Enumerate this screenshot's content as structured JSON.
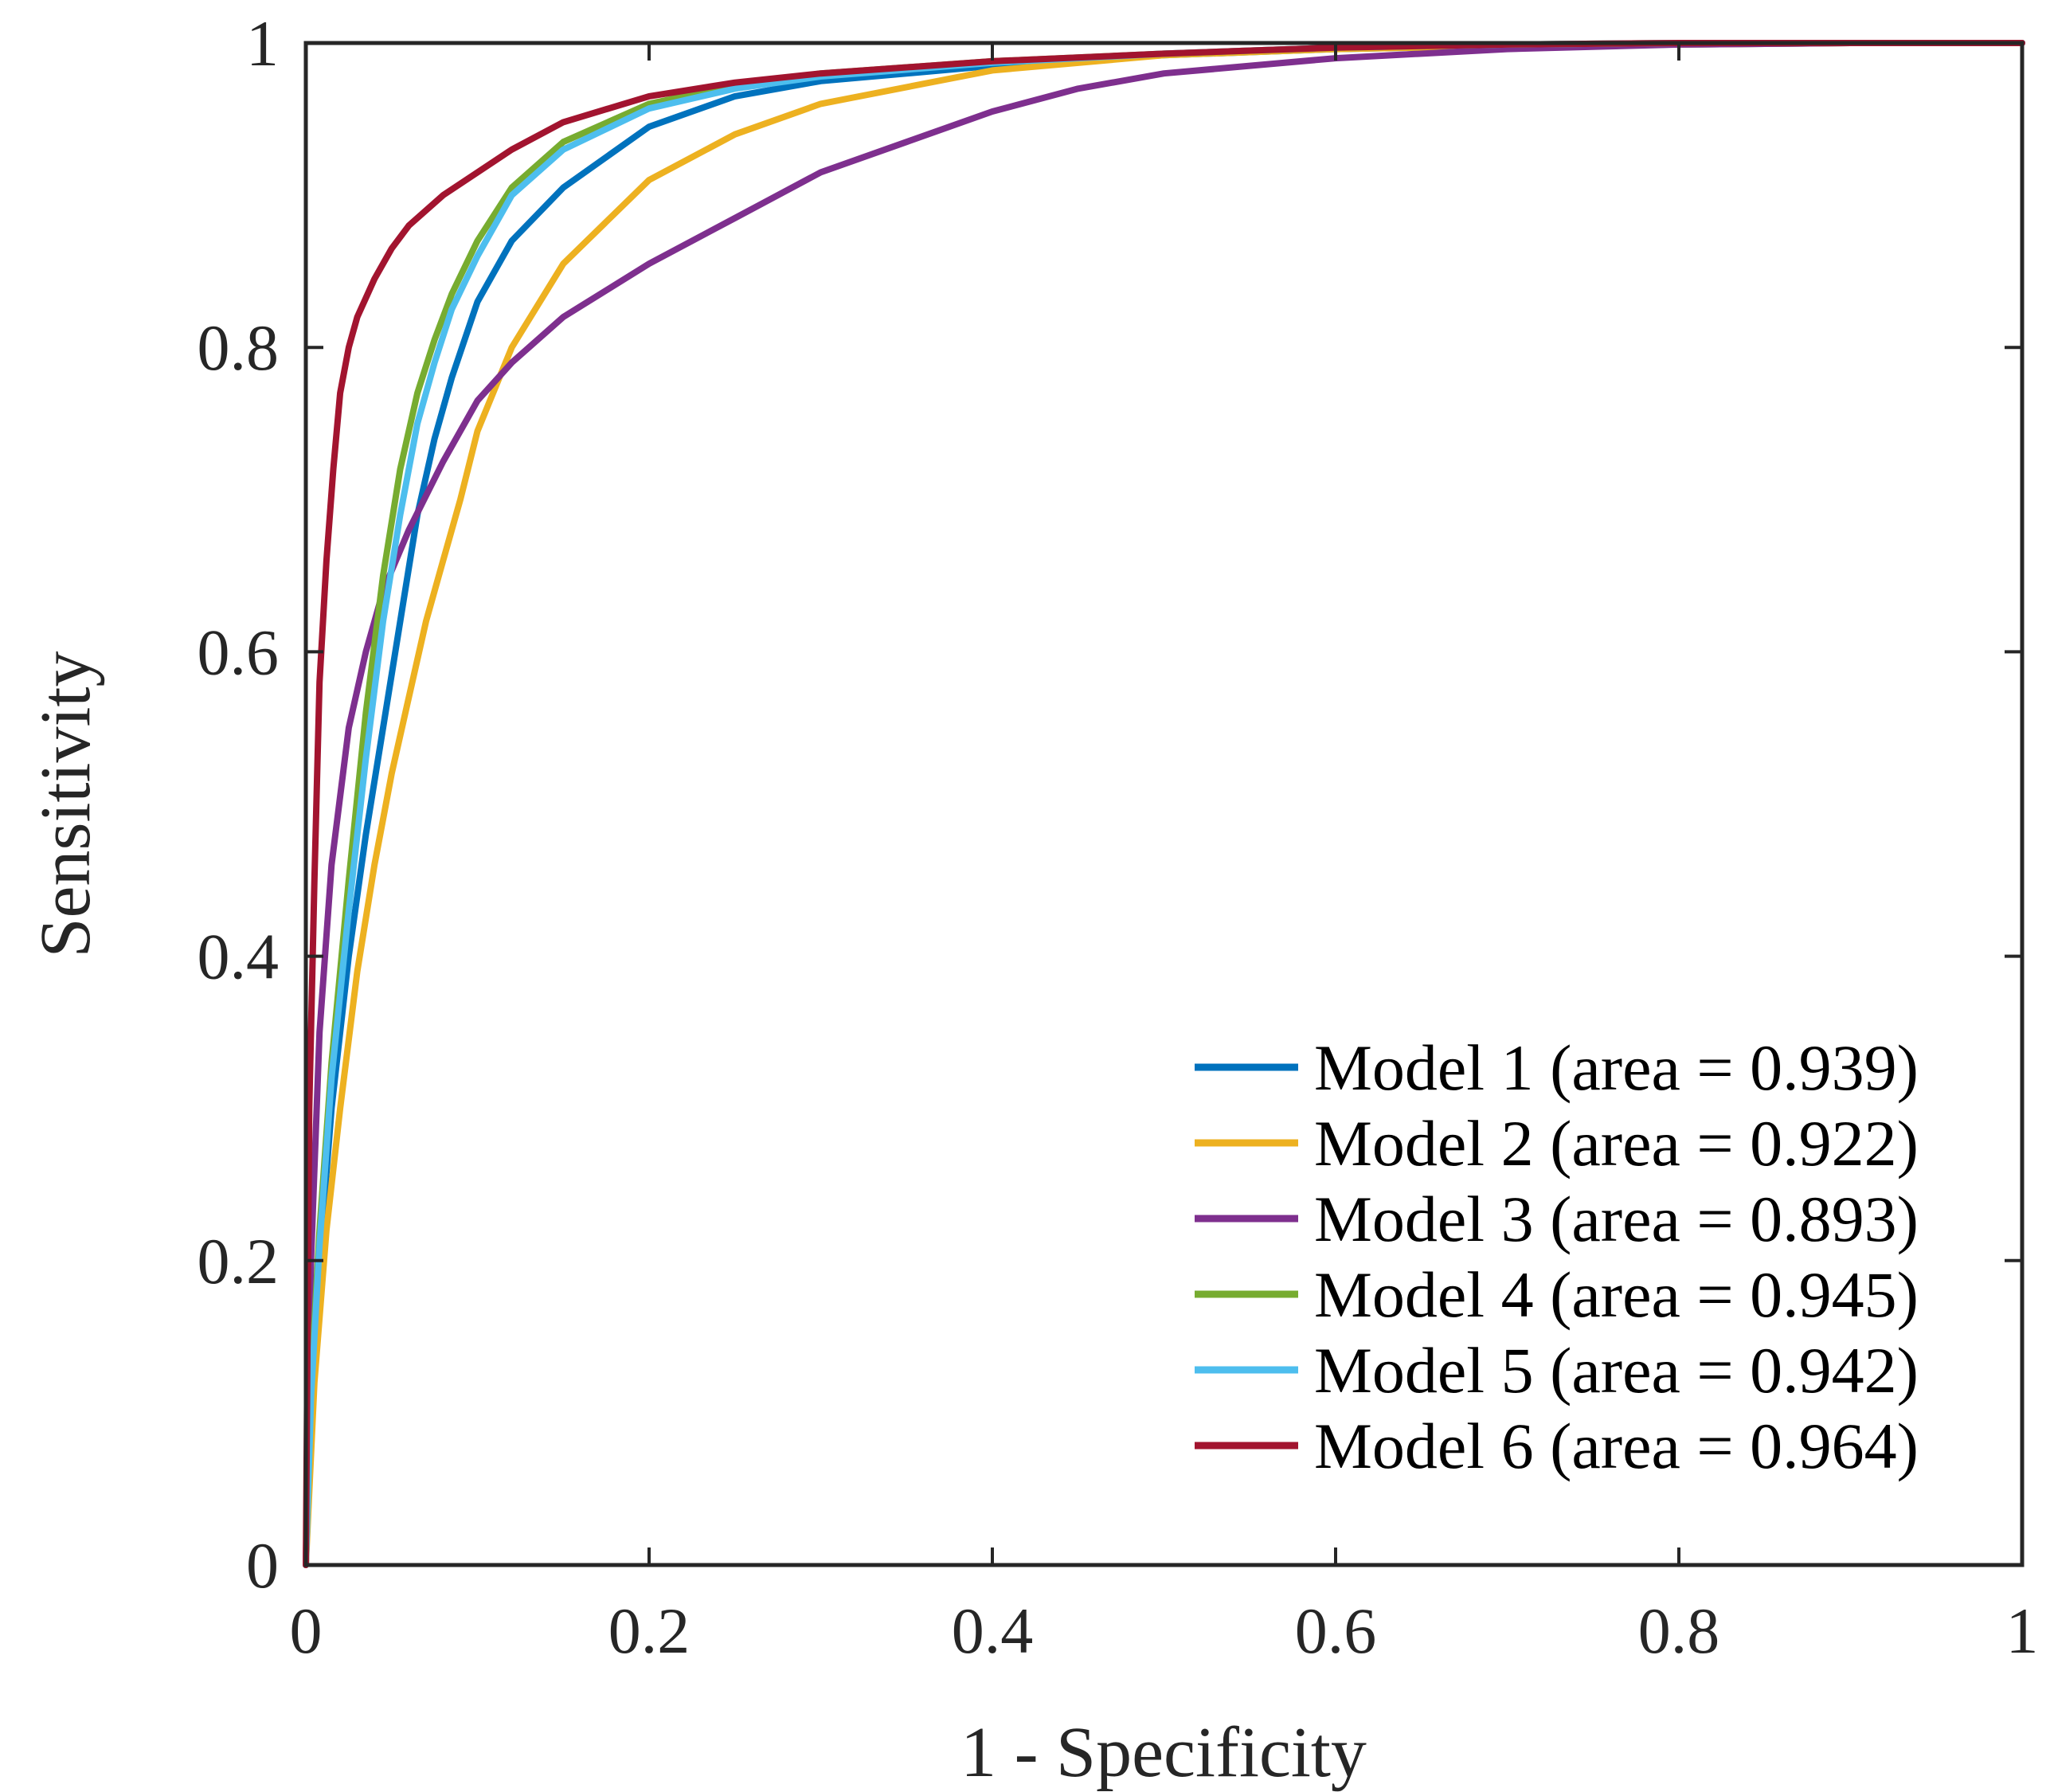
{
  "chart_data": {
    "type": "line",
    "title": "",
    "xlabel": "1 - Specificity",
    "ylabel": "Sensitivity",
    "xlim": [
      0,
      1
    ],
    "ylim": [
      0,
      1
    ],
    "xticks": [
      0,
      0.2,
      0.4,
      0.6,
      0.8,
      1
    ],
    "yticks": [
      0,
      0.2,
      0.4,
      0.6,
      0.8,
      1
    ],
    "xtick_labels": [
      "0",
      "0.2",
      "0.4",
      "0.6",
      "0.8",
      "1"
    ],
    "ytick_labels": [
      "0",
      "0.2",
      "0.4",
      "0.6",
      "0.8",
      "1"
    ],
    "grid": false,
    "legend_position": "bottom-right",
    "series": [
      {
        "name": "Model 1 (area = 0.939)",
        "color": "#0072BD",
        "x": [
          0,
          0.003,
          0.008,
          0.015,
          0.025,
          0.035,
          0.045,
          0.055,
          0.065,
          0.075,
          0.085,
          0.1,
          0.12,
          0.15,
          0.2,
          0.25,
          0.3,
          0.4,
          0.5,
          0.6,
          0.7,
          0.8,
          0.9,
          1
        ],
        "y": [
          0,
          0.1,
          0.2,
          0.3,
          0.4,
          0.48,
          0.55,
          0.62,
          0.69,
          0.74,
          0.78,
          0.83,
          0.87,
          0.905,
          0.945,
          0.965,
          0.975,
          0.985,
          0.992,
          0.996,
          0.998,
          0.999,
          1,
          1
        ]
      },
      {
        "name": "Model 2 (area = 0.922)",
        "color": "#EDB120",
        "x": [
          0,
          0.005,
          0.012,
          0.02,
          0.03,
          0.04,
          0.05,
          0.06,
          0.07,
          0.08,
          0.09,
          0.1,
          0.12,
          0.15,
          0.2,
          0.25,
          0.3,
          0.4,
          0.5,
          0.6,
          0.7,
          0.8,
          0.9,
          1
        ],
        "y": [
          0,
          0.12,
          0.22,
          0.3,
          0.39,
          0.46,
          0.52,
          0.57,
          0.62,
          0.66,
          0.7,
          0.745,
          0.8,
          0.855,
          0.91,
          0.94,
          0.96,
          0.982,
          0.992,
          0.996,
          0.998,
          0.999,
          1,
          1
        ]
      },
      {
        "name": "Model 3 (area = 0.893)",
        "color": "#7E2F8E",
        "x": [
          0,
          0.003,
          0.008,
          0.015,
          0.025,
          0.035,
          0.045,
          0.06,
          0.08,
          0.1,
          0.12,
          0.15,
          0.2,
          0.25,
          0.3,
          0.35,
          0.4,
          0.45,
          0.5,
          0.6,
          0.7,
          0.8,
          0.9,
          1
        ],
        "y": [
          0,
          0.2,
          0.35,
          0.46,
          0.55,
          0.6,
          0.64,
          0.68,
          0.725,
          0.765,
          0.79,
          0.82,
          0.855,
          0.885,
          0.915,
          0.935,
          0.955,
          0.97,
          0.98,
          0.99,
          0.996,
          0.999,
          1,
          1
        ]
      },
      {
        "name": "Model 4 (area = 0.945)",
        "color": "#77AC30",
        "x": [
          0,
          0.003,
          0.008,
          0.015,
          0.025,
          0.035,
          0.045,
          0.055,
          0.065,
          0.075,
          0.085,
          0.1,
          0.12,
          0.15,
          0.2,
          0.25,
          0.3,
          0.4,
          0.5,
          0.6,
          0.7,
          0.8,
          0.9,
          1
        ],
        "y": [
          0,
          0.12,
          0.22,
          0.33,
          0.45,
          0.56,
          0.65,
          0.72,
          0.77,
          0.805,
          0.835,
          0.87,
          0.905,
          0.935,
          0.96,
          0.972,
          0.98,
          0.988,
          0.993,
          0.997,
          0.999,
          1,
          1,
          1
        ]
      },
      {
        "name": "Model 5 (area = 0.942)",
        "color": "#4DBEEE",
        "x": [
          0,
          0.003,
          0.008,
          0.015,
          0.025,
          0.035,
          0.045,
          0.055,
          0.065,
          0.075,
          0.085,
          0.1,
          0.12,
          0.15,
          0.2,
          0.25,
          0.3,
          0.4,
          0.5,
          0.6,
          0.7,
          0.8,
          0.9,
          1
        ],
        "y": [
          0,
          0.11,
          0.21,
          0.32,
          0.43,
          0.53,
          0.62,
          0.69,
          0.75,
          0.79,
          0.825,
          0.86,
          0.9,
          0.93,
          0.957,
          0.97,
          0.978,
          0.987,
          0.993,
          0.997,
          0.999,
          1,
          1,
          1
        ]
      },
      {
        "name": "Model 6 (area = 0.964)",
        "color": "#A2142F",
        "x": [
          0,
          0.002,
          0.005,
          0.008,
          0.012,
          0.016,
          0.02,
          0.025,
          0.03,
          0.04,
          0.05,
          0.06,
          0.08,
          0.1,
          0.12,
          0.15,
          0.2,
          0.25,
          0.3,
          0.4,
          0.5,
          0.6,
          0.7,
          0.8,
          0.9,
          1
        ],
        "y": [
          0,
          0.3,
          0.45,
          0.58,
          0.66,
          0.72,
          0.77,
          0.8,
          0.82,
          0.845,
          0.865,
          0.88,
          0.9,
          0.915,
          0.93,
          0.948,
          0.965,
          0.974,
          0.98,
          0.988,
          0.993,
          0.997,
          0.999,
          1,
          1,
          1
        ]
      }
    ]
  }
}
